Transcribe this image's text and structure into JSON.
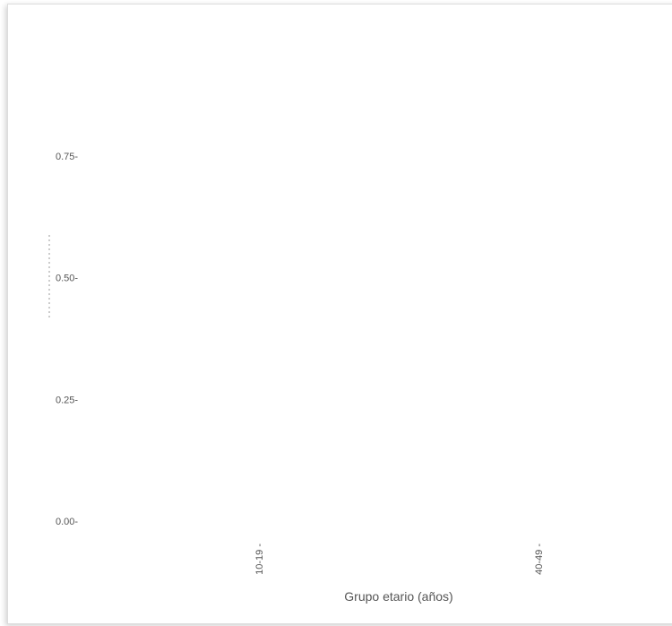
{
  "chart_data": {
    "type": "bar",
    "title": "",
    "xlabel": "Grupo etario (años)",
    "ylabel": "",
    "categories": [
      "10-19",
      "40-49"
    ],
    "values": [
      0,
      0
    ],
    "ylim": [
      0,
      0.75
    ],
    "y_ticks": [
      0.0,
      0.25,
      0.5,
      0.75
    ],
    "y_tick_labels": [
      "0.00-",
      "0.25-",
      "0.50-",
      "0.75-"
    ],
    "x_tick_labels": [
      "10-19 -",
      "40-49 -"
    ],
    "grid": false,
    "colors": {
      "text": "#555555",
      "border": "#dcdcdc"
    }
  }
}
